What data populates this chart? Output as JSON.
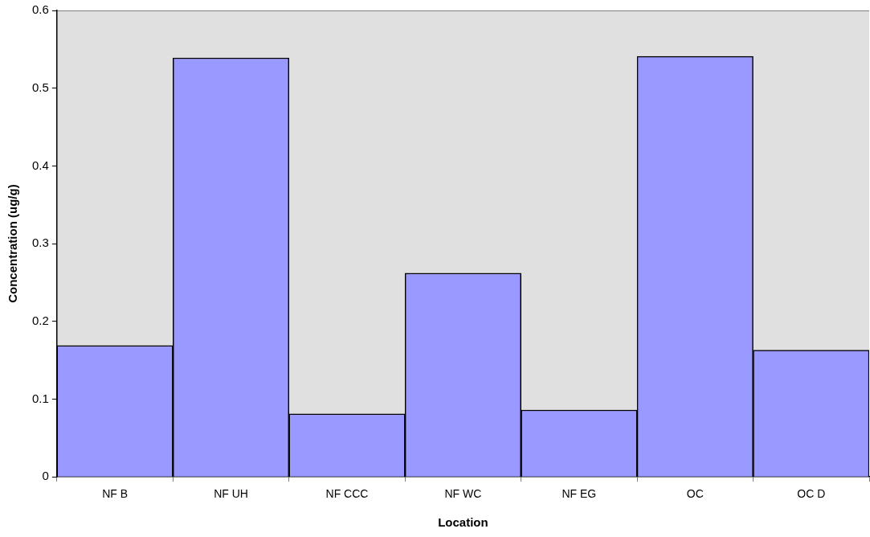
{
  "chart_data": {
    "type": "bar",
    "xlabel": "Location",
    "ylabel": "Concentration (ug/g)",
    "categories": [
      "NF B",
      "NF UH",
      "NF CCC",
      "NF WC",
      "NF EG",
      "OC",
      "OC D"
    ],
    "values": [
      0.169,
      0.539,
      0.081,
      0.262,
      0.086,
      0.541,
      0.163
    ],
    "color": "#9999ff",
    "ylim": [
      0,
      0.6
    ],
    "yticks": [
      0,
      0.1,
      0.2,
      0.3,
      0.4,
      0.5,
      0.6
    ],
    "grid": false,
    "legend": false
  }
}
